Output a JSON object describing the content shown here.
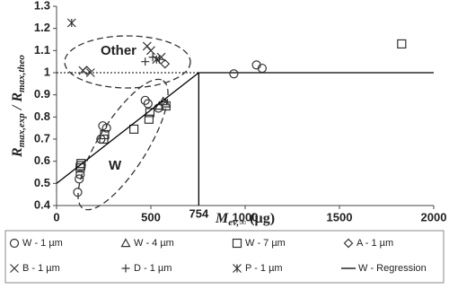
{
  "chart_data": {
    "type": "scatter",
    "x_label": [
      "M",
      "ev,∞",
      " (µg)"
    ],
    "y_label": [
      "R",
      "max,exp",
      " / R",
      "max,theo"
    ],
    "xlim": [
      0,
      2000
    ],
    "xticks": [
      0,
      500,
      1000,
      1500,
      2000
    ],
    "ylim": [
      0.4,
      1.3
    ],
    "yticks": [
      0.4,
      0.5,
      0.6,
      0.7,
      0.8,
      0.9,
      1,
      1.1,
      1.2,
      1.3
    ],
    "threshold_x": 754,
    "ref_y": 1,
    "annotations": [
      "Other",
      "W"
    ],
    "legend": "bottom",
    "series": [
      {
        "name": "W - 1 µm",
        "marker": "circle",
        "color": "#333333",
        "x": [
          112,
          120,
          125,
          235,
          245,
          265,
          470,
          485,
          540,
          940,
          1060,
          1090
        ],
        "values": [
          0.46,
          0.52,
          0.54,
          0.7,
          0.76,
          0.75,
          0.875,
          0.86,
          0.84,
          0.995,
          1.035,
          1.02
        ]
      },
      {
        "name": "W - 4 µm",
        "marker": "triangle",
        "color": "#333333",
        "x": [
          545,
          580,
          565
        ],
        "values": [
          0.85,
          0.86,
          0.87
        ]
      },
      {
        "name": "W - 7 µm",
        "marker": "square",
        "color": "#333333",
        "x": [
          125,
          128,
          130,
          250,
          255,
          410,
          490,
          495,
          580,
          1830
        ],
        "values": [
          0.57,
          0.58,
          0.59,
          0.7,
          0.72,
          0.745,
          0.79,
          0.82,
          0.85,
          1.13
        ]
      },
      {
        "name": "A - 1 µm",
        "marker": "diamond",
        "color": "#333333",
        "x": [
          160,
          575
        ],
        "values": [
          1.01,
          1.04
        ]
      },
      {
        "name": "B - 1 µm",
        "marker": "x",
        "color": "#333333",
        "x": [
          140,
          180,
          480,
          500,
          555
        ],
        "values": [
          1.01,
          1.0,
          1.12,
          1.1,
          1.07
        ]
      },
      {
        "name": "D - 1 µm",
        "marker": "plus",
        "color": "#333333",
        "x": [
          470,
          510,
          545
        ],
        "values": [
          1.05,
          1.07,
          1.06
        ]
      },
      {
        "name": "P - 1 µm",
        "marker": "star",
        "color": "#333333",
        "x": [
          80,
          530
        ],
        "values": [
          1.225,
          1.06
        ]
      },
      {
        "name": "W - Regression",
        "marker": "line",
        "color": "#000000",
        "x": [
          0,
          754
        ],
        "values": [
          0.5,
          1.0
        ]
      }
    ]
  }
}
